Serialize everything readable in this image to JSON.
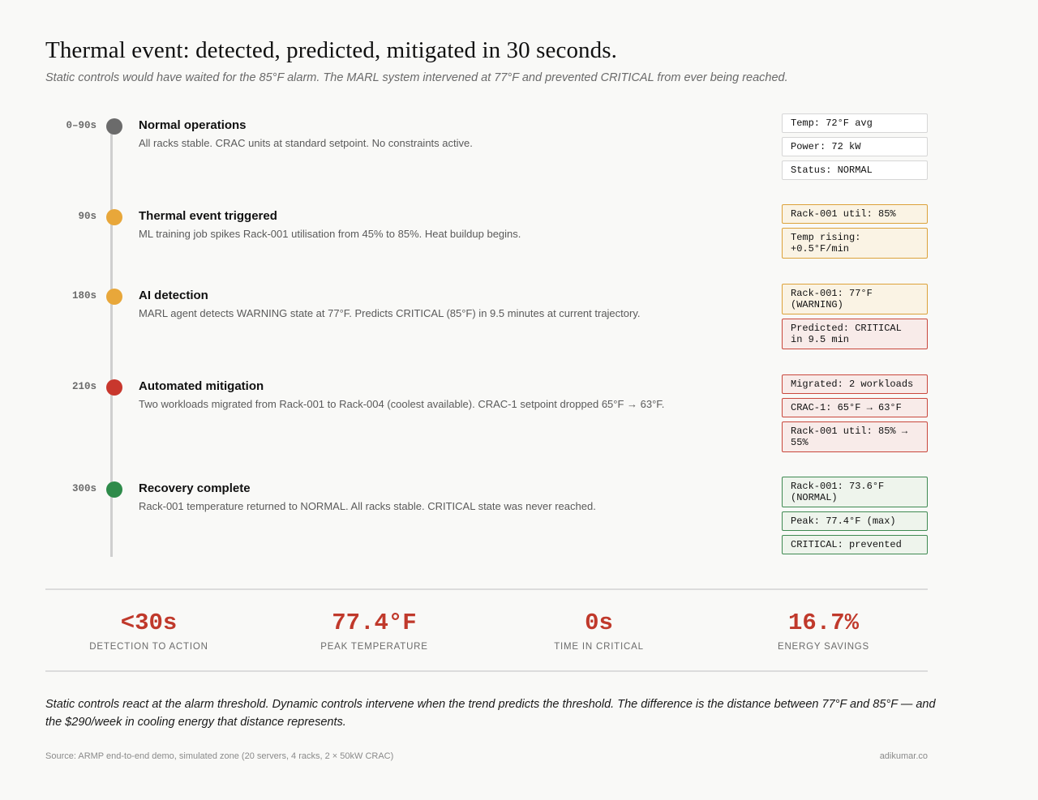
{
  "header": {
    "title": "Thermal event: detected, predicted, mitigated in 30 seconds.",
    "subtitle": "Static controls would have waited for the 85°F alarm. The MARL system intervened at 77°F and prevented CRITICAL from ever being reached."
  },
  "colors": {
    "neutral_dot": "#6b6b6b",
    "amber": "#e8a73a",
    "red": "#c8372d",
    "green": "#2e8b4a"
  },
  "timeline": [
    {
      "time": "0–90s",
      "title": "Normal operations",
      "desc": "All racks stable. CRAC units at standard setpoint. No constraints active.",
      "status": "neutral",
      "boxes": [
        "Temp: 72°F avg",
        "Power: 72 kW",
        "Status: NORMAL"
      ]
    },
    {
      "time": "90s",
      "title": "Thermal event triggered",
      "desc": "ML training job spikes Rack-001 utilisation from 45% to 85%. Heat buildup begins.",
      "status": "amber",
      "boxes": [
        "Rack-001 util: 85%",
        "Temp rising:\n+0.5°F/min"
      ]
    },
    {
      "time": "180s",
      "title": "AI detection",
      "desc": "MARL agent detects WARNING state at 77°F. Predicts CRITICAL (85°F) in 9.5 minutes at current trajectory.",
      "status": "amber",
      "boxes": [
        "Rack-001: 77°F\n(WARNING)",
        "Predicted: CRITICAL\nin 9.5 min"
      ],
      "box_styles": [
        "amber",
        "red"
      ]
    },
    {
      "time": "210s",
      "title": "Automated mitigation",
      "desc": "Two workloads migrated from Rack-001 to Rack-004 (coolest available). CRAC-1 setpoint dropped 65°F → 63°F.",
      "status": "red",
      "boxes": [
        "Migrated: 2 workloads",
        "CRAC-1: 65°F → 63°F",
        "Rack-001 util: 85% →\n55%"
      ]
    },
    {
      "time": "300s",
      "title": "Recovery complete",
      "desc": "Rack-001 temperature returned to NORMAL. All racks stable. CRITICAL state was never reached.",
      "status": "green",
      "boxes": [
        "Rack-001: 73.6°F\n(NORMAL)",
        "Peak: 77.4°F (max)",
        "CRITICAL: prevented"
      ]
    }
  ],
  "stats": [
    {
      "value": "<30s",
      "label": "DETECTION TO ACTION"
    },
    {
      "value": "77.4°F",
      "label": "PEAK TEMPERATURE"
    },
    {
      "value": "0s",
      "label": "TIME IN CRITICAL"
    },
    {
      "value": "16.7%",
      "label": "ENERGY SAVINGS"
    }
  ],
  "conclusion": "Static controls react at the alarm threshold. Dynamic controls intervene when the trend predicts the threshold. The difference is the distance between 77°F and 85°F — and the $290/week in cooling energy that distance represents.",
  "footer": {
    "source": "Source: ARMP end-to-end demo, simulated zone (20 servers, 4 racks, 2 × 50kW CRAC)",
    "credit": "adikumar.co"
  }
}
